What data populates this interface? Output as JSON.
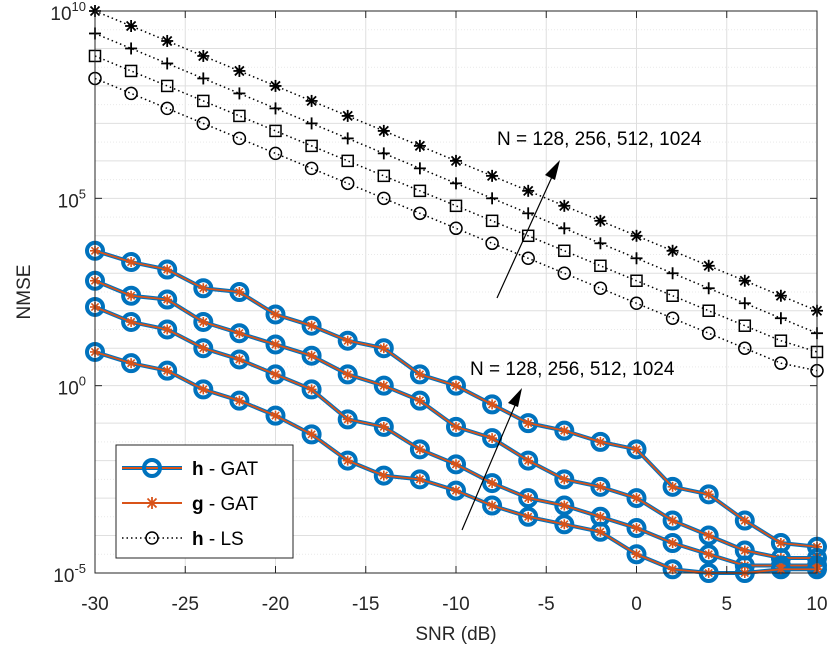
{
  "chart_data": {
    "type": "line",
    "yscale": "log",
    "xlabel": "SNR (dB)",
    "ylabel": "NMSE",
    "xlim": [
      -30,
      10
    ],
    "ylim_log10": [
      -5,
      10
    ],
    "grid": true,
    "x": [
      -30,
      -28,
      -26,
      -24,
      -22,
      -20,
      -18,
      -16,
      -14,
      -12,
      -10,
      -8,
      -6,
      -4,
      -2,
      0,
      2,
      4,
      6,
      8,
      10
    ],
    "xticks": [
      "-30",
      "-25",
      "-20",
      "-15",
      "-10",
      "-5",
      "0",
      "5",
      "10"
    ],
    "xtick_values": [
      -30,
      -25,
      -20,
      -15,
      -10,
      -5,
      0,
      5,
      10
    ],
    "yticks": [
      {
        "base": "10",
        "exp": "-5",
        "log10": -5
      },
      {
        "base": "10",
        "exp": "0",
        "log10": 0
      },
      {
        "base": "10",
        "exp": "5",
        "log10": 5
      },
      {
        "base": "10",
        "exp": "10",
        "log10": 10
      }
    ],
    "ls_series": [
      {
        "name": "h - LS, N = 1024",
        "marker": "asterisk",
        "log10_values": [
          10.0,
          9.6,
          9.2,
          8.8,
          8.4,
          8.0,
          7.6,
          7.2,
          6.8,
          6.4,
          6.0,
          5.6,
          5.2,
          4.8,
          4.4,
          4.0,
          3.6,
          3.2,
          2.8,
          2.4,
          2.0
        ]
      },
      {
        "name": "h - LS, N = 512",
        "marker": "plus",
        "log10_values": [
          9.4,
          9.0,
          8.6,
          8.2,
          7.8,
          7.4,
          7.0,
          6.6,
          6.2,
          5.8,
          5.4,
          5.0,
          4.6,
          4.2,
          3.8,
          3.4,
          3.0,
          2.6,
          2.2,
          1.8,
          1.4
        ]
      },
      {
        "name": "h - LS, N = 256",
        "marker": "square",
        "log10_values": [
          8.8,
          8.4,
          8.0,
          7.6,
          7.2,
          6.8,
          6.4,
          6.0,
          5.6,
          5.2,
          4.8,
          4.4,
          4.0,
          3.6,
          3.2,
          2.8,
          2.4,
          2.0,
          1.6,
          1.2,
          0.9
        ]
      },
      {
        "name": "h - LS, N = 128",
        "marker": "circle",
        "log10_values": [
          8.2,
          7.8,
          7.4,
          7.0,
          6.6,
          6.2,
          5.8,
          5.4,
          5.0,
          4.6,
          4.2,
          3.8,
          3.4,
          3.0,
          2.6,
          2.2,
          1.8,
          1.4,
          1.0,
          0.6,
          0.4
        ]
      }
    ],
    "gat_series": [
      {
        "name": "h - GAT / g - GAT, N = 1024",
        "log10_values": [
          3.6,
          3.3,
          3.1,
          2.6,
          2.5,
          1.9,
          1.6,
          1.2,
          1.0,
          0.3,
          0.0,
          -0.5,
          -1.0,
          -1.2,
          -1.5,
          -1.7,
          -2.7,
          -2.9,
          -3.6,
          -4.2,
          -4.3
        ]
      },
      {
        "name": "h - GAT / g - GAT, N = 512",
        "log10_values": [
          2.8,
          2.4,
          2.3,
          1.7,
          1.4,
          1.1,
          0.8,
          0.3,
          0.0,
          -0.4,
          -1.1,
          -1.4,
          -2.0,
          -2.5,
          -2.7,
          -3.0,
          -3.6,
          -4.0,
          -4.4,
          -4.6,
          -4.6
        ]
      },
      {
        "name": "h - GAT / g - GAT, N = 256",
        "log10_values": [
          2.1,
          1.7,
          1.5,
          1.0,
          0.7,
          0.3,
          -0.1,
          -0.9,
          -1.1,
          -1.7,
          -2.1,
          -2.6,
          -3.0,
          -3.2,
          -3.5,
          -3.8,
          -4.2,
          -4.5,
          -4.8,
          -4.8,
          -4.8
        ]
      },
      {
        "name": "h - GAT / g - GAT, N = 128",
        "log10_values": [
          0.9,
          0.6,
          0.4,
          -0.1,
          -0.4,
          -0.8,
          -1.3,
          -2.0,
          -2.4,
          -2.5,
          -2.8,
          -3.2,
          -3.5,
          -3.7,
          -3.9,
          -4.5,
          -4.9,
          -5.0,
          -5.0,
          -4.9,
          -4.9
        ]
      }
    ],
    "annotations": [
      {
        "text": "N = 128, 256, 512, 1024",
        "target": "h - LS curves"
      },
      {
        "text": "N = 128, 256, 512, 1024",
        "target": "GAT curves"
      }
    ],
    "legend": {
      "position": "bottom-left",
      "entries": [
        {
          "bold": "h",
          "rest": " - GAT",
          "style": "thick blue line, circle markers"
        },
        {
          "bold": "g",
          "rest": " - GAT",
          "style": "orange line, asterisk markers"
        },
        {
          "bold": "h",
          "rest": " - LS",
          "style": "black dotted line, circle markers"
        }
      ]
    },
    "colors": {
      "h_gat": "#0072BD",
      "g_gat": "#D95319",
      "ls": "#000000",
      "grid": "#dfdfdf",
      "axis": "#262626"
    }
  }
}
